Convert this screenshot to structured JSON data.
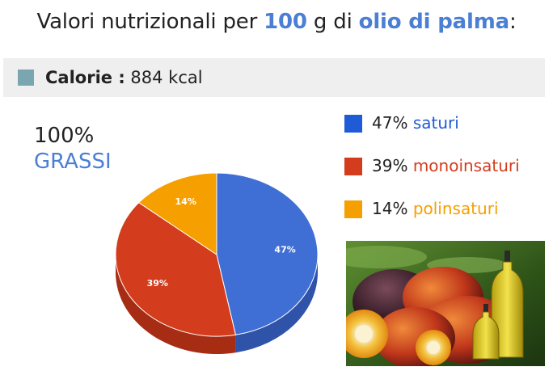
{
  "title": {
    "prefix": "Valori nutrizionali per ",
    "amount": "100",
    "middle": " g di ",
    "food": "olio di palma",
    "suffix": ":"
  },
  "calories": {
    "label": "Calorie :",
    "value": "884 kcal"
  },
  "total": {
    "percent": "100%",
    "label": "GRASSI"
  },
  "colors": {
    "accent": "#4a7fd4",
    "saturated": "#1f5bd6",
    "mono": "#d33c1d",
    "poly": "#f5a000",
    "calorie_square": "#7aa6b2"
  },
  "legend": [
    {
      "percent": "47%",
      "label": "saturi",
      "color": "#1f5bd6"
    },
    {
      "percent": "39%",
      "label": "monoinsaturi",
      "color": "#d33c1d"
    },
    {
      "percent": "14%",
      "label": "polinsaturi",
      "color": "#f5a000"
    }
  ],
  "chart_data": {
    "type": "pie",
    "categories": [
      "saturi",
      "monoinsaturi",
      "polinsaturi"
    ],
    "values": [
      47,
      39,
      14
    ],
    "data_labels": [
      "47%",
      "39%",
      "14%"
    ],
    "colors": [
      "#3f6fd4",
      "#d33c1d",
      "#f5a000"
    ]
  }
}
